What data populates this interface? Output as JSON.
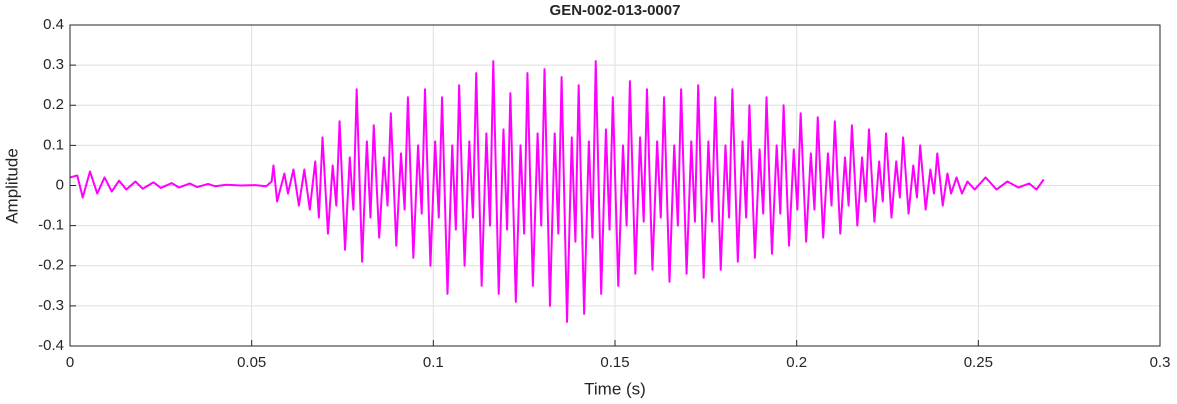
{
  "chart_data": {
    "type": "line",
    "title": "GEN-002-013-0007",
    "xlabel": "Time (s)",
    "ylabel": "Amplitude",
    "color": "#ff00ff",
    "grid": true,
    "xlim": [
      0,
      0.3
    ],
    "xticks": [
      0,
      0.05,
      0.1,
      0.15,
      0.2,
      0.25,
      0.3
    ],
    "ylim": [
      -0.4,
      0.4
    ],
    "yticks": [
      -0.4,
      -0.3,
      -0.2,
      -0.1,
      0,
      0.1,
      0.2,
      0.3,
      0.4
    ],
    "x": [
      0,
      0.002,
      0.0035,
      0.0055,
      0.0075,
      0.0095,
      0.0115,
      0.0135,
      0.0155,
      0.018,
      0.02,
      0.023,
      0.025,
      0.028,
      0.03,
      0.033,
      0.035,
      0.038,
      0.04,
      0.043,
      0.047,
      0.051,
      0.054,
      0.0555,
      0.056,
      0.057,
      0.059,
      0.06,
      0.0615,
      0.063,
      0.0645,
      0.066,
      0.0675,
      0.0685,
      0.0695,
      0.071,
      0.0723,
      0.0733,
      0.0742,
      0.0757,
      0.077,
      0.078,
      0.0789,
      0.0804,
      0.0817,
      0.0827,
      0.0836,
      0.0851,
      0.0864,
      0.0874,
      0.0883,
      0.0898,
      0.0911,
      0.0921,
      0.093,
      0.0945,
      0.0958,
      0.0968,
      0.0977,
      0.0992,
      0.1005,
      0.1015,
      0.1024,
      0.1039,
      0.1052,
      0.1062,
      0.1071,
      0.1086,
      0.1099,
      0.1109,
      0.1118,
      0.1133,
      0.1146,
      0.1156,
      0.1165,
      0.118,
      0.1193,
      0.1203,
      0.1212,
      0.1227,
      0.124,
      0.125,
      0.1259,
      0.1274,
      0.1287,
      0.1297,
      0.1306,
      0.1321,
      0.1334,
      0.1344,
      0.1353,
      0.1368,
      0.1381,
      0.1391,
      0.14,
      0.1415,
      0.1428,
      0.1438,
      0.1447,
      0.1462,
      0.1475,
      0.1485,
      0.1494,
      0.1509,
      0.1522,
      0.1532,
      0.1541,
      0.1556,
      0.1569,
      0.1579,
      0.1588,
      0.1603,
      0.1616,
      0.1626,
      0.1635,
      0.165,
      0.1663,
      0.1673,
      0.1682,
      0.1697,
      0.171,
      0.172,
      0.1729,
      0.1744,
      0.1757,
      0.1767,
      0.1776,
      0.1791,
      0.1804,
      0.1814,
      0.1823,
      0.1838,
      0.1851,
      0.1861,
      0.187,
      0.1885,
      0.1898,
      0.1908,
      0.1917,
      0.1932,
      0.1945,
      0.1955,
      0.1964,
      0.1979,
      0.1992,
      0.2002,
      0.2011,
      0.2026,
      0.2039,
      0.2049,
      0.2058,
      0.2073,
      0.2086,
      0.2096,
      0.2105,
      0.212,
      0.2133,
      0.2143,
      0.2152,
      0.2167,
      0.218,
      0.219,
      0.2199,
      0.2214,
      0.2227,
      0.2237,
      0.2246,
      0.2261,
      0.2274,
      0.2284,
      0.2293,
      0.2308,
      0.2321,
      0.2331,
      0.234,
      0.2355,
      0.2368,
      0.2378,
      0.2387,
      0.2402,
      0.2415,
      0.2425,
      0.244,
      0.2455,
      0.247,
      0.249,
      0.252,
      0.255,
      0.258,
      0.261,
      0.264,
      0.266,
      0.268
    ],
    "values": [
      0.02,
      0.025,
      -0.03,
      0.035,
      -0.02,
      0.02,
      -0.015,
      0.012,
      -0.01,
      0.01,
      -0.008,
      0.008,
      -0.006,
      0.006,
      -0.005,
      0.005,
      -0.004,
      0.004,
      -0.002,
      0.002,
      0,
      0.001,
      -0.002,
      0.01,
      0.05,
      -0.04,
      0.03,
      -0.02,
      0.04,
      -0.05,
      0.04,
      -0.06,
      0.06,
      -0.08,
      0.12,
      -0.12,
      0.05,
      -0.05,
      0.16,
      -0.16,
      0.07,
      -0.06,
      0.24,
      -0.19,
      0.11,
      -0.08,
      0.15,
      -0.13,
      0.07,
      -0.05,
      0.18,
      -0.15,
      0.08,
      -0.06,
      0.22,
      -0.18,
      0.1,
      -0.07,
      0.24,
      -0.2,
      0.11,
      -0.08,
      0.22,
      -0.27,
      0.1,
      -0.11,
      0.25,
      -0.2,
      0.11,
      -0.08,
      0.28,
      -0.25,
      0.13,
      -0.1,
      0.31,
      -0.27,
      0.14,
      -0.11,
      0.23,
      -0.29,
      0.1,
      -0.12,
      0.28,
      -0.25,
      0.13,
      -0.1,
      0.29,
      -0.3,
      0.13,
      -0.12,
      0.27,
      -0.34,
      0.12,
      -0.14,
      0.25,
      -0.32,
      0.11,
      -0.13,
      0.31,
      -0.27,
      0.14,
      -0.11,
      0.22,
      -0.25,
      0.1,
      -0.1,
      0.26,
      -0.22,
      0.12,
      -0.09,
      0.24,
      -0.21,
      0.11,
      -0.08,
      0.22,
      -0.24,
      0.1,
      -0.1,
      0.24,
      -0.22,
      0.11,
      -0.09,
      0.25,
      -0.23,
      0.11,
      -0.09,
      0.22,
      -0.21,
      0.1,
      -0.08,
      0.24,
      -0.19,
      0.11,
      -0.08,
      0.2,
      -0.18,
      0.09,
      -0.07,
      0.22,
      -0.17,
      0.1,
      -0.07,
      0.2,
      -0.15,
      0.09,
      -0.06,
      0.18,
      -0.14,
      0.08,
      -0.06,
      0.17,
      -0.13,
      0.08,
      -0.05,
      0.16,
      -0.12,
      0.07,
      -0.05,
      0.15,
      -0.1,
      0.07,
      -0.04,
      0.14,
      -0.09,
      0.06,
      -0.04,
      0.13,
      -0.08,
      0.06,
      -0.03,
      0.12,
      -0.07,
      0.05,
      -0.03,
      0.1,
      -0.06,
      0.04,
      -0.02,
      0.08,
      -0.05,
      0.03,
      -0.02,
      0.02,
      -0.02,
      0.01,
      -0.01,
      0.02,
      -0.01,
      0.01,
      -0.005,
      0.005,
      -0.01,
      0.015
    ]
  }
}
